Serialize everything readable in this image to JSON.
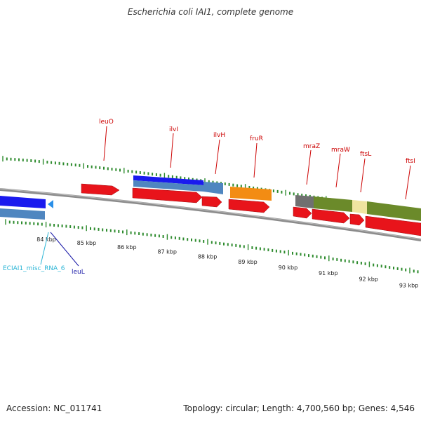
{
  "title": "Escherichia coli IAI1, complete genome",
  "footer": {
    "accession": "Accession: NC_011741",
    "summary": "Topology: circular; Length: 4,700,560 bp; Genes: 4,546"
  },
  "colors": {
    "cds": "#e8141b",
    "gene_blue": "#1a1aee",
    "gene_steel": "#4f86c0",
    "gene_orange": "#f38c13",
    "gene_olive": "#6b8a2a",
    "gene_gray": "#707070",
    "gene_tan": "#efe4a0",
    "tick_green": "#2e8b2e",
    "backbone": "#8c8c8c",
    "label_red": "#cc0000",
    "label_cyan": "#2bb5d6",
    "label_navy": "#1b1ba8"
  },
  "ruler": {
    "labels": [
      "84 kbp",
      "85 kbp",
      "86 kbp",
      "87 kbp",
      "88 kbp",
      "89 kbp",
      "90 kbp",
      "91 kbp",
      "92 kbp",
      "93 kbp"
    ]
  },
  "gene_labels": [
    {
      "id": "leuO",
      "text": "leuO"
    },
    {
      "id": "ilvI",
      "text": "ilvI"
    },
    {
      "id": "ilvH",
      "text": "ilvH"
    },
    {
      "id": "fruR",
      "text": "fruR"
    },
    {
      "id": "mraZ",
      "text": "mraZ"
    },
    {
      "id": "mraW",
      "text": "mraW"
    },
    {
      "id": "ftsL",
      "text": "ftsL"
    },
    {
      "id": "ftsI",
      "text": "ftsI"
    }
  ],
  "lower_labels": {
    "misc_rna": "ECIAI1_misc_RNA_6",
    "leuL": "leuL"
  }
}
